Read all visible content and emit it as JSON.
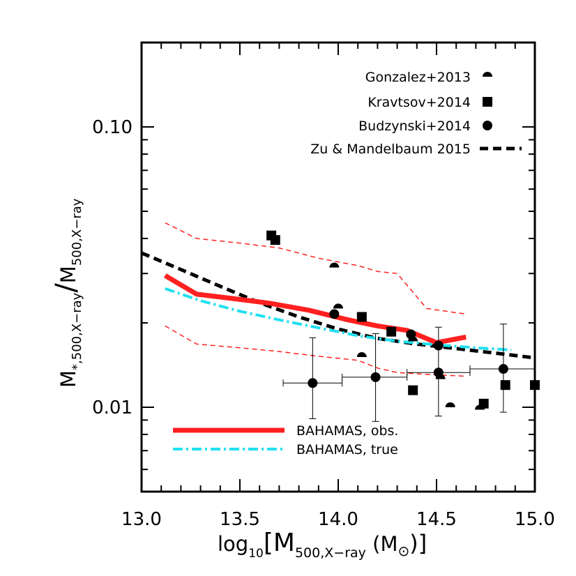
{
  "chart_data": {
    "type": "scatter",
    "xlabel": {
      "main": "log",
      "sub10": "10",
      "bracket_open": "[M",
      "sub": "500,X−ray",
      "unit": " (M",
      "sun": "⊙",
      "close": ")]"
    },
    "ylabel": {
      "m1": "M",
      "sub1": "*,500,X−ray",
      "slash": "/",
      "m2": "M",
      "sub2": "500,X−ray"
    },
    "xlim": [
      13.0,
      15.0
    ],
    "ylim": [
      0.005,
      0.2
    ],
    "yscale": "log",
    "x_ticks": [
      {
        "value": 13.0,
        "label": "13.0"
      },
      {
        "value": 13.5,
        "label": "13.5"
      },
      {
        "value": 14.0,
        "label": "14.0"
      },
      {
        "value": 14.5,
        "label": "14.5"
      },
      {
        "value": 15.0,
        "label": "15.0"
      }
    ],
    "y_ticks": [
      {
        "value": 0.01,
        "label": "0.01"
      },
      {
        "value": 0.1,
        "label": "0.10"
      }
    ],
    "legend_position": "top-right",
    "series": [
      {
        "name": "Gonzalez+2013",
        "kind": "points",
        "marker": "half-circle",
        "color": "#000000",
        "points": [
          [
            13.98,
            0.0315
          ],
          [
            14.0,
            0.0225
          ],
          [
            14.12,
            0.0151
          ],
          [
            14.38,
            0.0172
          ],
          [
            14.52,
            0.0126
          ],
          [
            14.57,
            0.01
          ],
          [
            14.72,
            0.0098
          ]
        ]
      },
      {
        "name": "Kravtsov+2014",
        "kind": "points",
        "marker": "square",
        "color": "#000000",
        "points": [
          [
            13.66,
            0.041
          ],
          [
            13.68,
            0.0395
          ],
          [
            14.12,
            0.021
          ],
          [
            14.27,
            0.0186
          ],
          [
            14.38,
            0.0115
          ],
          [
            14.74,
            0.0103
          ],
          [
            14.85,
            0.012
          ],
          [
            15.0,
            0.012
          ]
        ]
      },
      {
        "name": "Budzynski+2014",
        "kind": "points_err",
        "marker": "circle",
        "color": "#000000",
        "points": [
          {
            "x": 13.87,
            "y": 0.0122,
            "xerr": [
              13.72,
              14.02
            ],
            "yerr": [
              0.0091,
              0.0177
            ]
          },
          {
            "x": 14.19,
            "y": 0.0128,
            "xerr": [
              14.02,
              14.35
            ],
            "yerr": [
              0.0089,
              0.0183
            ]
          },
          {
            "x": 14.51,
            "y": 0.0133,
            "xerr": [
              14.35,
              14.67
            ],
            "yerr": [
              0.0093,
              0.0193
            ]
          },
          {
            "x": 14.84,
            "y": 0.0137,
            "xerr": [
              14.67,
              15.0
            ],
            "yerr": [
              0.0096,
              0.0198
            ]
          },
          {
            "x": 13.98,
            "y": 0.0215,
            "xerr": null,
            "yerr": null
          },
          {
            "x": 14.37,
            "y": 0.0182,
            "xerr": null,
            "yerr": null
          },
          {
            "x": 14.51,
            "y": 0.0166,
            "xerr": null,
            "yerr": null
          }
        ]
      },
      {
        "name": "Zu & Mandelbaum 2015",
        "kind": "line",
        "style": "dashed",
        "color": "#000000",
        "width": 5,
        "points": [
          [
            13.0,
            0.0355
          ],
          [
            13.2,
            0.031
          ],
          [
            13.4,
            0.027
          ],
          [
            13.6,
            0.0236
          ],
          [
            13.8,
            0.021
          ],
          [
            14.0,
            0.019
          ],
          [
            14.2,
            0.0176
          ],
          [
            14.4,
            0.0168
          ],
          [
            14.6,
            0.0162
          ],
          [
            14.8,
            0.0156
          ],
          [
            15.0,
            0.015
          ]
        ]
      },
      {
        "name": "BAHAMAS, obs.",
        "kind": "line",
        "style": "solid",
        "color": "#ff2020",
        "width": 7,
        "points": [
          [
            13.12,
            0.0295
          ],
          [
            13.28,
            0.0253
          ],
          [
            13.45,
            0.0245
          ],
          [
            13.65,
            0.0235
          ],
          [
            13.85,
            0.0222
          ],
          [
            14.05,
            0.0205
          ],
          [
            14.2,
            0.0195
          ],
          [
            14.35,
            0.0188
          ],
          [
            14.5,
            0.017
          ],
          [
            14.65,
            0.0178
          ]
        ]
      },
      {
        "name": "",
        "kind": "line",
        "style": "thin-dashed",
        "color": "#ff2020",
        "width": 1.5,
        "points": [
          [
            13.12,
            0.0455
          ],
          [
            13.28,
            0.04
          ],
          [
            13.5,
            0.0385
          ],
          [
            13.7,
            0.037
          ],
          [
            13.9,
            0.034
          ],
          [
            14.1,
            0.032
          ],
          [
            14.2,
            0.0305
          ],
          [
            14.3,
            0.03
          ],
          [
            14.45,
            0.0225
          ],
          [
            14.65,
            0.0215
          ]
        ]
      },
      {
        "name": "",
        "kind": "line",
        "style": "thin-dashed",
        "color": "#ff2020",
        "width": 1.5,
        "points": [
          [
            13.12,
            0.0195
          ],
          [
            13.28,
            0.0168
          ],
          [
            13.5,
            0.0163
          ],
          [
            13.7,
            0.0158
          ],
          [
            13.9,
            0.0152
          ],
          [
            14.1,
            0.0147
          ],
          [
            14.2,
            0.0138
          ],
          [
            14.3,
            0.0133
          ],
          [
            14.45,
            0.0131
          ],
          [
            14.65,
            0.0129
          ]
        ]
      },
      {
        "name": "BAHAMAS, true",
        "kind": "line",
        "style": "dash-dot",
        "color": "#20e0f0",
        "width": 4,
        "points": [
          [
            13.12,
            0.0265
          ],
          [
            13.3,
            0.024
          ],
          [
            13.5,
            0.022
          ],
          [
            13.7,
            0.0205
          ],
          [
            13.9,
            0.0192
          ],
          [
            14.1,
            0.018
          ],
          [
            14.3,
            0.0172
          ],
          [
            14.5,
            0.0167
          ],
          [
            14.7,
            0.0163
          ],
          [
            14.88,
            0.016
          ]
        ]
      }
    ],
    "legend_top": [
      "Gonzalez+2013",
      "Kravtsov+2014",
      "Budzynski+2014",
      "Zu & Mandelbaum 2015"
    ],
    "legend_bottom": [
      "BAHAMAS, obs.",
      "BAHAMAS, true"
    ]
  }
}
